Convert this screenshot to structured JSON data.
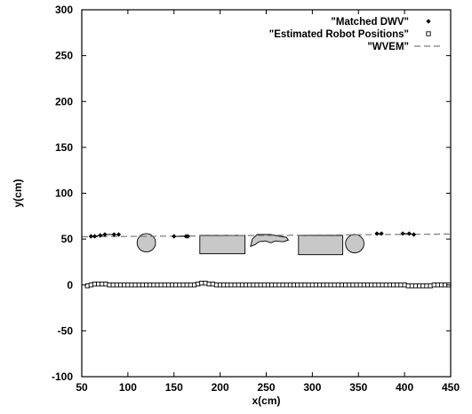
{
  "chart_data": {
    "type": "scatter",
    "xlabel": "x(cm)",
    "ylabel": "y(cm)",
    "xlim": [
      50,
      450
    ],
    "ylim": [
      -100,
      300
    ],
    "xticks": [
      50,
      100,
      150,
      200,
      250,
      300,
      350,
      400,
      450
    ],
    "yticks": [
      -100,
      -50,
      0,
      50,
      100,
      150,
      200,
      250,
      300
    ],
    "grid": false,
    "legend_position": "top-right",
    "series": [
      {
        "name": "\"Matched DWV\"",
        "marker": "filled-diamond",
        "x": [
          60,
          64,
          70,
          75,
          85,
          90,
          150,
          163,
          165,
          370,
          375,
          398,
          405,
          410
        ],
        "y": [
          53,
          53,
          54,
          55,
          55,
          55,
          53,
          53,
          53,
          56,
          56,
          56,
          56,
          55
        ]
      },
      {
        "name": "\"Estimated Robot Positions\"",
        "marker": "open-square",
        "x": [
          56,
          60,
          64,
          68,
          72,
          76,
          80,
          84,
          88,
          92,
          96,
          100,
          104,
          108,
          112,
          116,
          120,
          124,
          128,
          132,
          136,
          140,
          144,
          148,
          152,
          156,
          160,
          164,
          168,
          172,
          176,
          180,
          184,
          188,
          192,
          196,
          200,
          204,
          208,
          212,
          216,
          220,
          224,
          228,
          232,
          236,
          240,
          244,
          248,
          252,
          256,
          260,
          264,
          268,
          272,
          276,
          280,
          284,
          288,
          292,
          296,
          300,
          304,
          308,
          312,
          316,
          320,
          324,
          328,
          332,
          336,
          340,
          344,
          348,
          352,
          356,
          360,
          364,
          368,
          372,
          376,
          380,
          384,
          388,
          392,
          396,
          400,
          404,
          408,
          412,
          416,
          420,
          424,
          428,
          432,
          436,
          440,
          444,
          448
        ],
        "y": [
          -1,
          0,
          1,
          1,
          1,
          1,
          0,
          0,
          0,
          0,
          0,
          0,
          0,
          0,
          0,
          0,
          0,
          0,
          0,
          0,
          0,
          0,
          0,
          0,
          0,
          0,
          0,
          0,
          0,
          0,
          1,
          2,
          2,
          1,
          1,
          0,
          0,
          0,
          0,
          0,
          0,
          0,
          0,
          0,
          0,
          0,
          0,
          0,
          0,
          0,
          0,
          0,
          0,
          0,
          0,
          0,
          0,
          0,
          0,
          0,
          0,
          0,
          0,
          0,
          0,
          0,
          0,
          0,
          0,
          0,
          0,
          0,
          0,
          0,
          0,
          0,
          0,
          0,
          0,
          0,
          0,
          0,
          0,
          0,
          0,
          0,
          0,
          -1,
          -1,
          -1,
          -1,
          -1,
          -1,
          -1,
          0,
          0,
          0,
          0,
          0
        ]
      },
      {
        "name": "\"WVEM\"",
        "style": "dashed-line",
        "color": "#7a7a7a",
        "x": [
          50,
          450
        ],
        "y": [
          52.5,
          55.5
        ]
      }
    ],
    "obstacles": [
      {
        "shape": "circle",
        "cx": 120,
        "cy": 46,
        "r": 10,
        "fill": "#c8c8c8"
      },
      {
        "shape": "rect",
        "x0": 178,
        "x1": 227,
        "y0": 34,
        "y1": 54,
        "fill": "#c8c8c8"
      },
      {
        "shape": "blob",
        "points": [
          [
            233,
            42
          ],
          [
            235,
            50
          ],
          [
            240,
            55
          ],
          [
            255,
            55
          ],
          [
            265,
            53
          ],
          [
            272,
            52
          ],
          [
            274,
            49
          ],
          [
            268,
            47
          ],
          [
            260,
            48
          ],
          [
            255,
            46
          ],
          [
            249,
            48
          ],
          [
            242,
            47
          ],
          [
            238,
            44
          ]
        ],
        "fill": "#c8c8c8"
      },
      {
        "shape": "rect",
        "x0": 285,
        "x1": 333,
        "y0": 33,
        "y1": 54,
        "fill": "#c8c8c8"
      },
      {
        "shape": "circle",
        "cx": 346,
        "cy": 45,
        "r": 10,
        "fill": "#c8c8c8"
      }
    ]
  },
  "legend": {
    "items": [
      {
        "label": "\"Matched DWV\"",
        "marker": "filled-diamond"
      },
      {
        "label": "\"Estimated Robot Positions\"",
        "marker": "open-square"
      },
      {
        "label": "\"WVEM\"",
        "marker": "dashed-line"
      }
    ]
  }
}
